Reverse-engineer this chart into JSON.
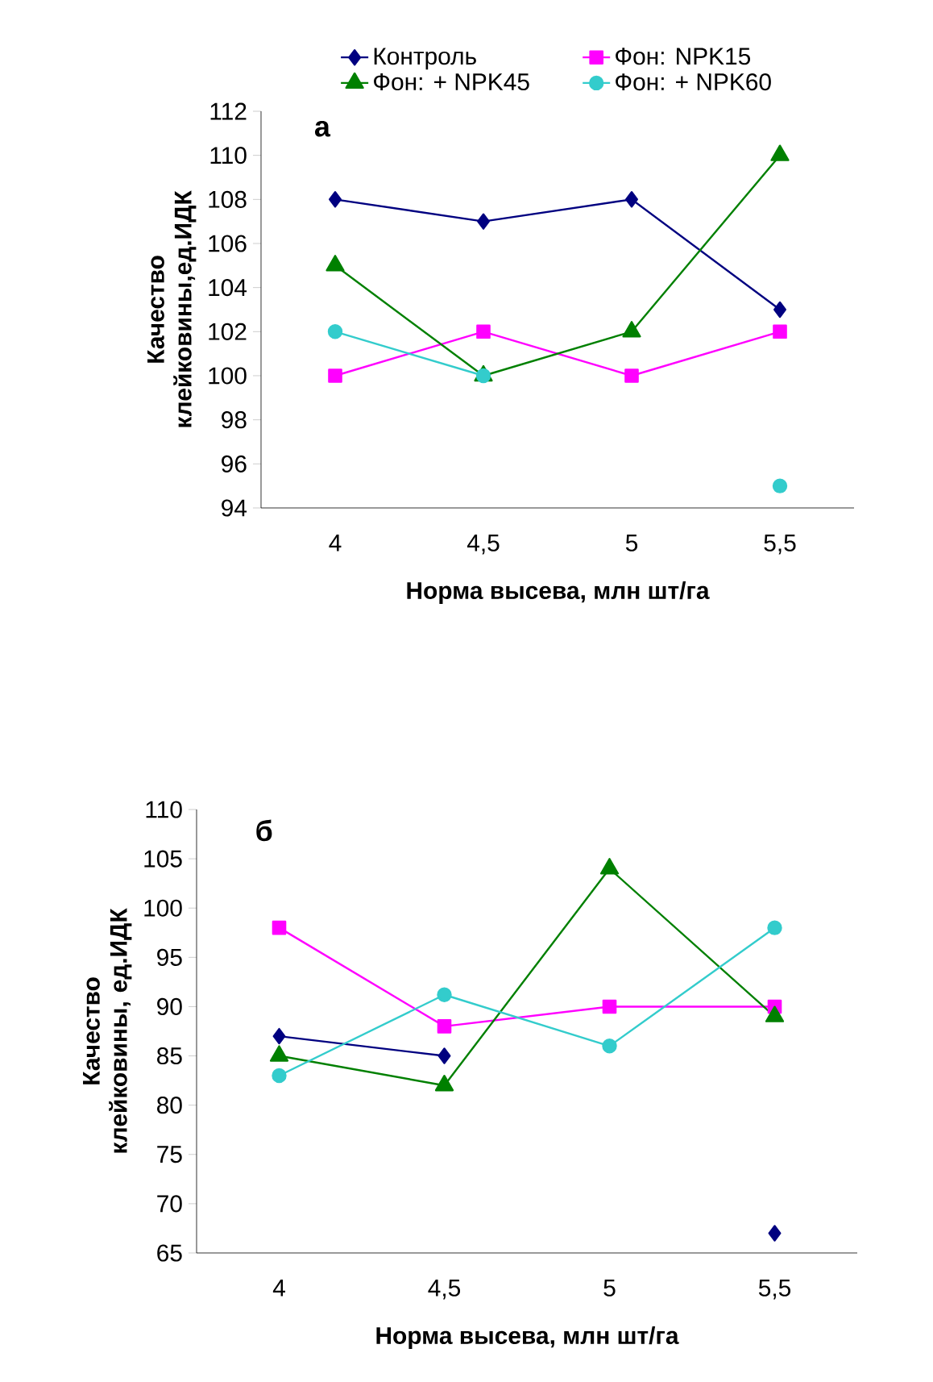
{
  "chart_data": [
    {
      "type": "line",
      "annotations": [
        "а"
      ],
      "xlabel": "Норма высева, млн шт/га",
      "ylabel": "Качество клейковины,ед.ИДК",
      "categories": [
        "4",
        "4,5",
        "5",
        "5,5"
      ],
      "ylim": [
        94,
        112
      ],
      "yticks": [
        94,
        96,
        98,
        100,
        102,
        104,
        106,
        108,
        110,
        112
      ],
      "grid": false,
      "legend": "top",
      "series": [
        {
          "name": "Контроль",
          "color": "#000080",
          "marker": "diamond",
          "values": [
            108,
            107,
            108,
            103
          ]
        },
        {
          "name": "Фон: NPK15",
          "color": "#ff00ff",
          "marker": "square",
          "values": [
            100,
            102,
            100,
            102
          ]
        },
        {
          "name": "Фон: + NPK45",
          "color": "#008000",
          "marker": "triangle",
          "values": [
            105,
            100,
            102,
            110
          ]
        },
        {
          "name": "Фон: + NPK60",
          "color": "#33cccc",
          "marker": "circle",
          "values": [
            102,
            100,
            null,
            95
          ]
        }
      ]
    },
    {
      "type": "line",
      "annotations": [
        "б"
      ],
      "xlabel": "Норма высева, млн шт/га",
      "ylabel": "Качество клейковины, ед.ИДК",
      "categories": [
        "4",
        "4,5",
        "5",
        "5,5"
      ],
      "ylim": [
        65,
        110
      ],
      "yticks": [
        65,
        70,
        75,
        80,
        85,
        90,
        95,
        100,
        105,
        110
      ],
      "grid": false,
      "legend": false,
      "series": [
        {
          "color": "#000080",
          "marker": "diamond",
          "values": [
            87,
            85,
            null,
            67
          ]
        },
        {
          "color": "#ff00ff",
          "marker": "square",
          "values": [
            98,
            88,
            90,
            90
          ]
        },
        {
          "color": "#008000",
          "marker": "triangle",
          "values": [
            85,
            82,
            104,
            89
          ]
        },
        {
          "color": "#33cccc",
          "marker": "circle",
          "values": [
            83,
            91.2,
            86,
            98
          ]
        }
      ]
    }
  ]
}
